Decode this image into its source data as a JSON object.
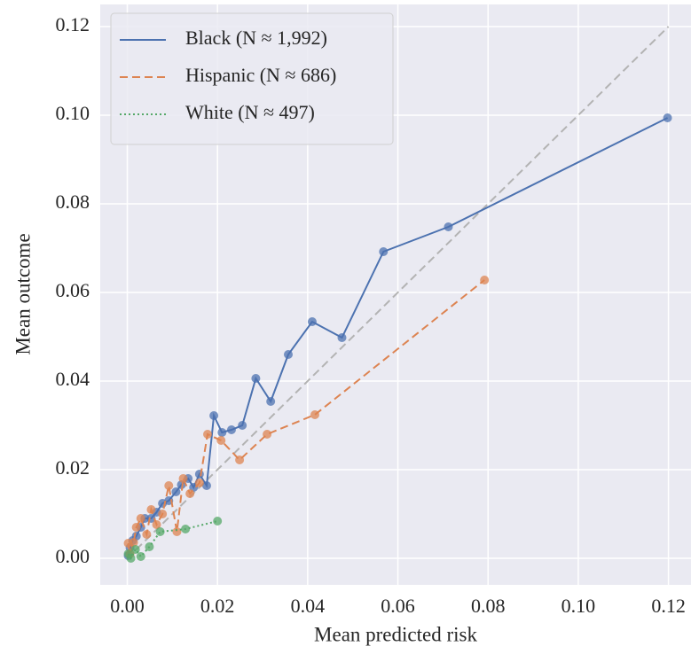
{
  "chart_data": {
    "type": "line",
    "xlabel": "Mean predicted risk",
    "ylabel": "Mean outcome",
    "xlim": [
      -0.006,
      0.125
    ],
    "ylim": [
      -0.006,
      0.125
    ],
    "xticks": [
      {
        "value": 0,
        "label": "0.00"
      },
      {
        "value": 0.02,
        "label": "0.02"
      },
      {
        "value": 0.04,
        "label": "0.04"
      },
      {
        "value": 0.06,
        "label": "0.06"
      },
      {
        "value": 0.08,
        "label": "0.08"
      },
      {
        "value": 0.1,
        "label": "0.10"
      },
      {
        "value": 0.12,
        "label": "0.12"
      }
    ],
    "yticks": [
      {
        "value": 0,
        "label": "0.00"
      },
      {
        "value": 0.02,
        "label": "0.02"
      },
      {
        "value": 0.04,
        "label": "0.04"
      },
      {
        "value": 0.06,
        "label": "0.06"
      },
      {
        "value": 0.08,
        "label": "0.08"
      },
      {
        "value": 0.1,
        "label": "0.10"
      },
      {
        "value": 0.12,
        "label": "0.12"
      }
    ],
    "grid": true,
    "legend": "upper left",
    "reference_line": {
      "x": [
        0,
        0.12
      ],
      "y": [
        0,
        0.12
      ],
      "color": "#b3b3b3",
      "dash": "dashed"
    },
    "series": [
      {
        "name": "Black (N ≈ 1,992)",
        "color": "#4c72b0",
        "dash": "solid",
        "x": [
          0.0002,
          0.0006,
          0.0012,
          0.002,
          0.003,
          0.0039,
          0.0053,
          0.0065,
          0.0078,
          0.0092,
          0.0108,
          0.012,
          0.0135,
          0.0147,
          0.016,
          0.0176,
          0.0192,
          0.021,
          0.0231,
          0.0255,
          0.0285,
          0.0318,
          0.0357,
          0.041,
          0.0476,
          0.0568,
          0.0712,
          0.1198
        ],
        "values": [
          0.0006,
          0.0024,
          0.004,
          0.005,
          0.007,
          0.009,
          0.009,
          0.0104,
          0.0124,
          0.013,
          0.015,
          0.0166,
          0.018,
          0.016,
          0.019,
          0.0164,
          0.0322,
          0.0284,
          0.029,
          0.03,
          0.0406,
          0.0354,
          0.046,
          0.0534,
          0.0498,
          0.0692,
          0.0748,
          0.0994
        ]
      },
      {
        "name": "Hispanic (N ≈ 686)",
        "color": "#dd8452",
        "dash": "dashed",
        "x": [
          0.0002,
          0.0006,
          0.0014,
          0.002,
          0.003,
          0.0043,
          0.0053,
          0.0065,
          0.0078,
          0.0092,
          0.011,
          0.0124,
          0.0139,
          0.016,
          0.0178,
          0.0208,
          0.0249,
          0.031,
          0.0416,
          0.0792
        ],
        "values": [
          0.0034,
          0.001,
          0.0036,
          0.007,
          0.009,
          0.0054,
          0.011,
          0.0076,
          0.01,
          0.0164,
          0.006,
          0.018,
          0.0146,
          0.017,
          0.028,
          0.0266,
          0.0222,
          0.028,
          0.0324,
          0.0628
        ]
      },
      {
        "name": "White (N ≈ 497)",
        "color": "#55a868",
        "dash": "dotted",
        "x": [
          0.0002,
          0.0008,
          0.0018,
          0.003,
          0.0049,
          0.0073,
          0.0129,
          0.02
        ],
        "values": [
          0.001,
          0.0,
          0.002,
          0.0004,
          0.0026,
          0.006,
          0.0066,
          0.0084
        ]
      }
    ]
  }
}
